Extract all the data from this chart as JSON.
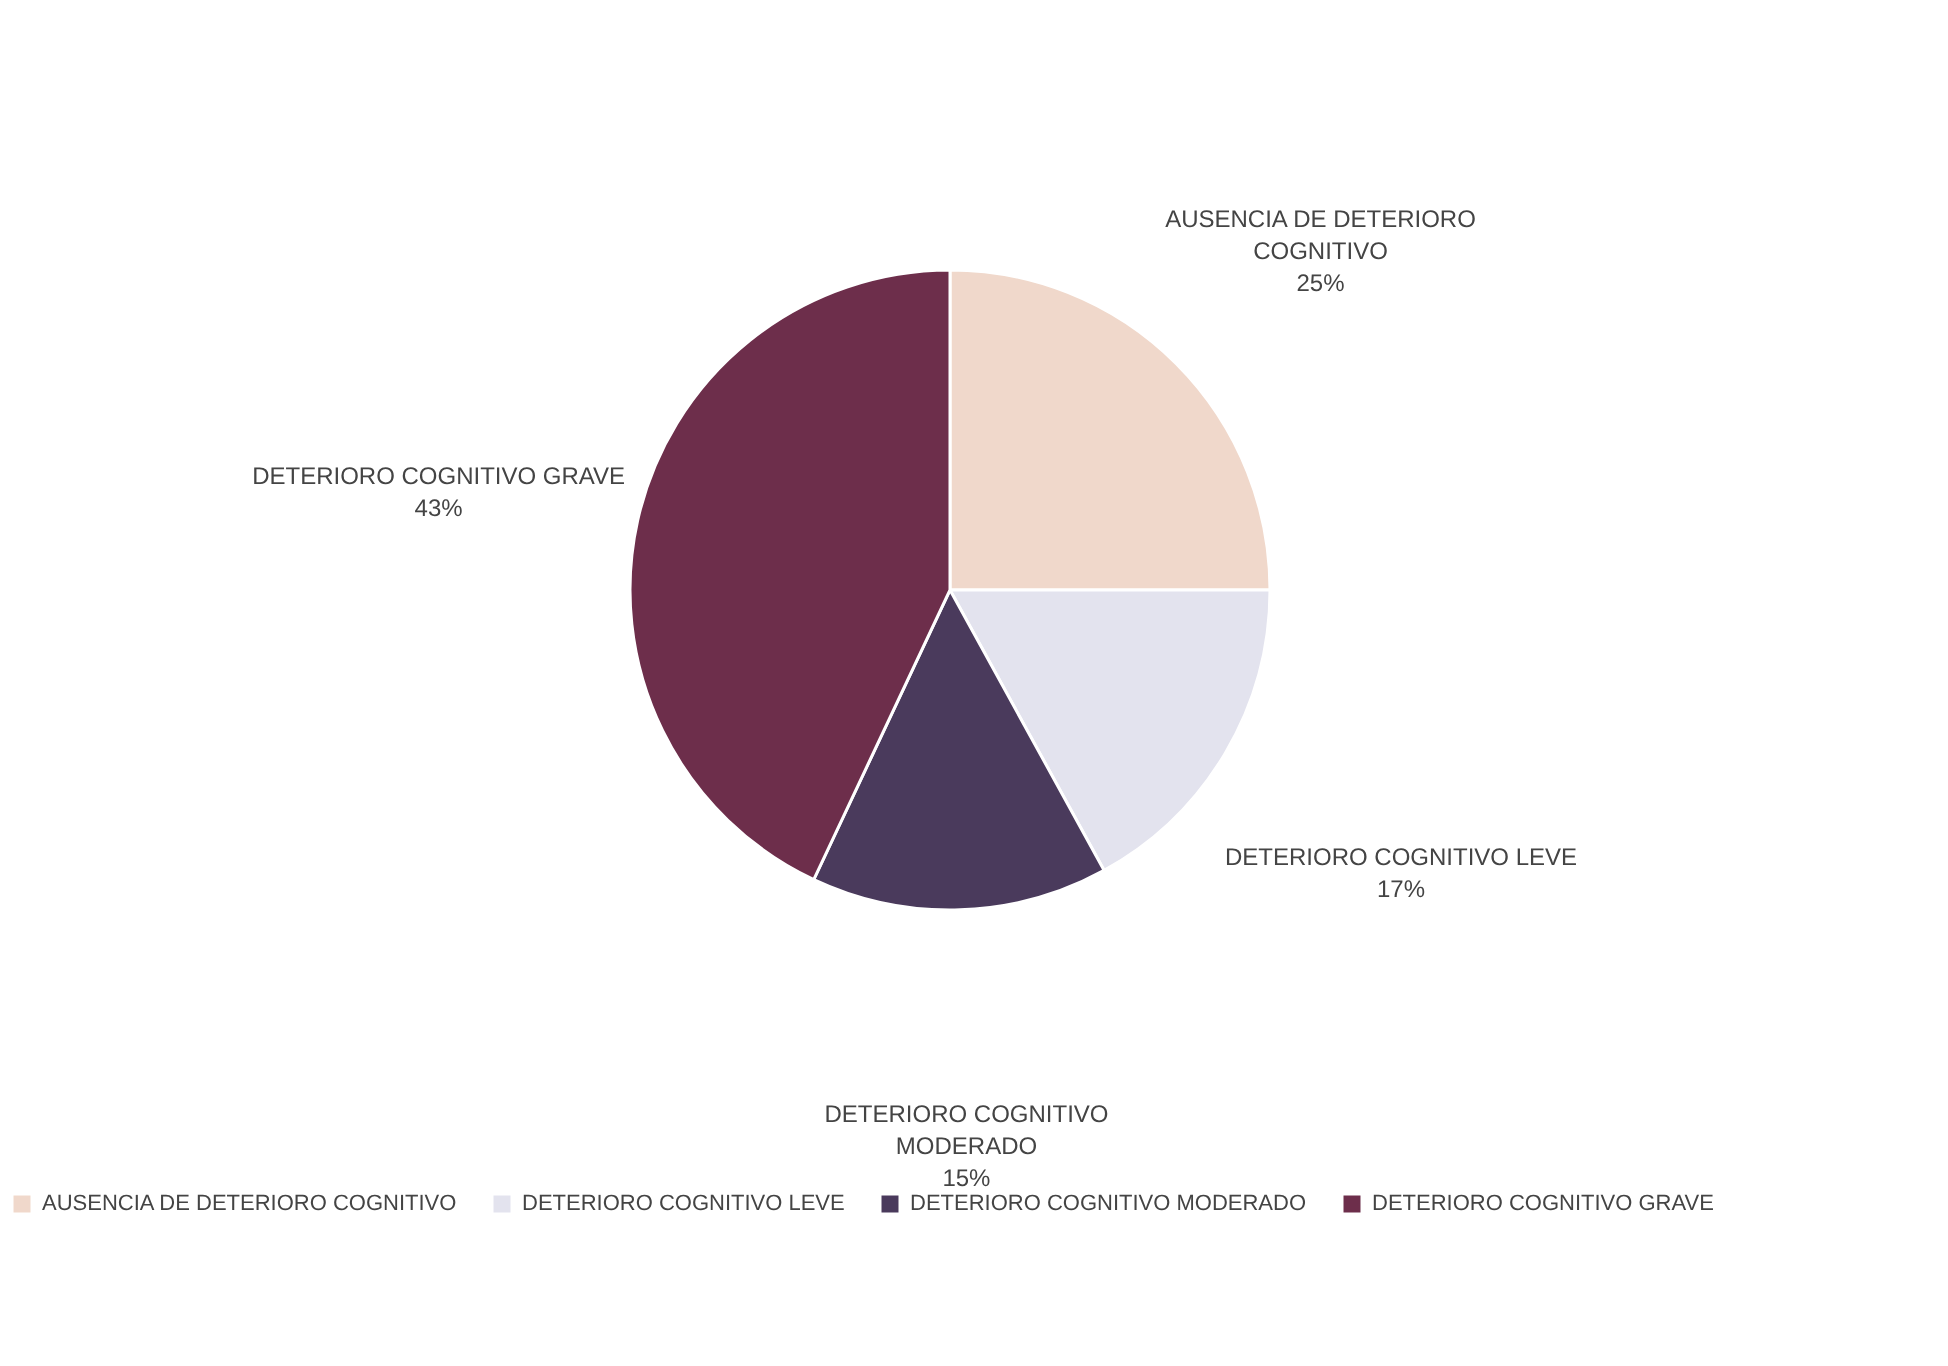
{
  "chart_data": {
    "type": "pie",
    "categories": [
      "AUSENCIA DE DETERIORO COGNITIVO",
      "DETERIORO COGNITIVO LEVE",
      "DETERIORO COGNITIVO MODERADO",
      "DETERIORO COGNITIVO GRAVE"
    ],
    "values": [
      25,
      17,
      15,
      43
    ],
    "value_labels": [
      "25%",
      "17%",
      "15%",
      "43%"
    ],
    "colors": [
      "#f0d8cb",
      "#e3e3ee",
      "#4a3a5c",
      "#6d2e4b"
    ],
    "legend": "bottom"
  }
}
